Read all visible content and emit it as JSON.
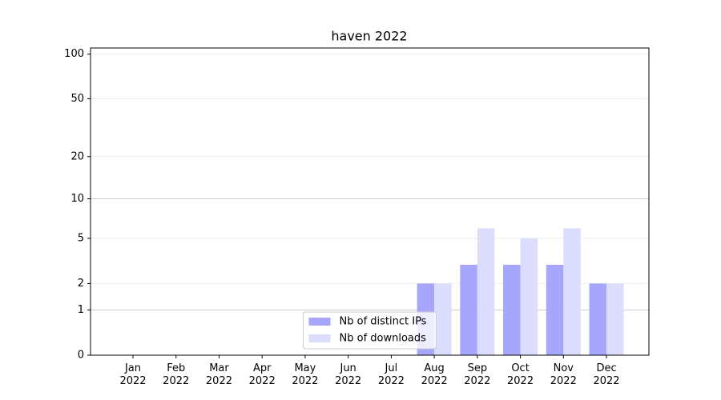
{
  "chart_data": {
    "type": "bar",
    "title": "haven 2022",
    "categories": [
      "Jan\n2022",
      "Feb\n2022",
      "Mar\n2022",
      "Apr\n2022",
      "May\n2022",
      "Jun\n2022",
      "Jul\n2022",
      "Aug\n2022",
      "Sep\n2022",
      "Oct\n2022",
      "Nov\n2022",
      "Dec\n2022"
    ],
    "series": [
      {
        "name": "Nb of distinct IPs",
        "color": "#a6a6fc",
        "values": [
          0,
          0,
          0,
          0,
          0,
          0,
          0,
          2,
          3,
          3,
          3,
          2
        ]
      },
      {
        "name": "Nb of downloads",
        "color": "#dcdcfc",
        "values": [
          0,
          0,
          0,
          0,
          0,
          0,
          0,
          2,
          6,
          5,
          6,
          2
        ]
      }
    ],
    "y_scale": "log1p",
    "ylim": [
      0,
      110
    ],
    "yticks": [
      0,
      1,
      2,
      5,
      10,
      20,
      50,
      100
    ],
    "grid": true,
    "legend_position": "lower center"
  }
}
